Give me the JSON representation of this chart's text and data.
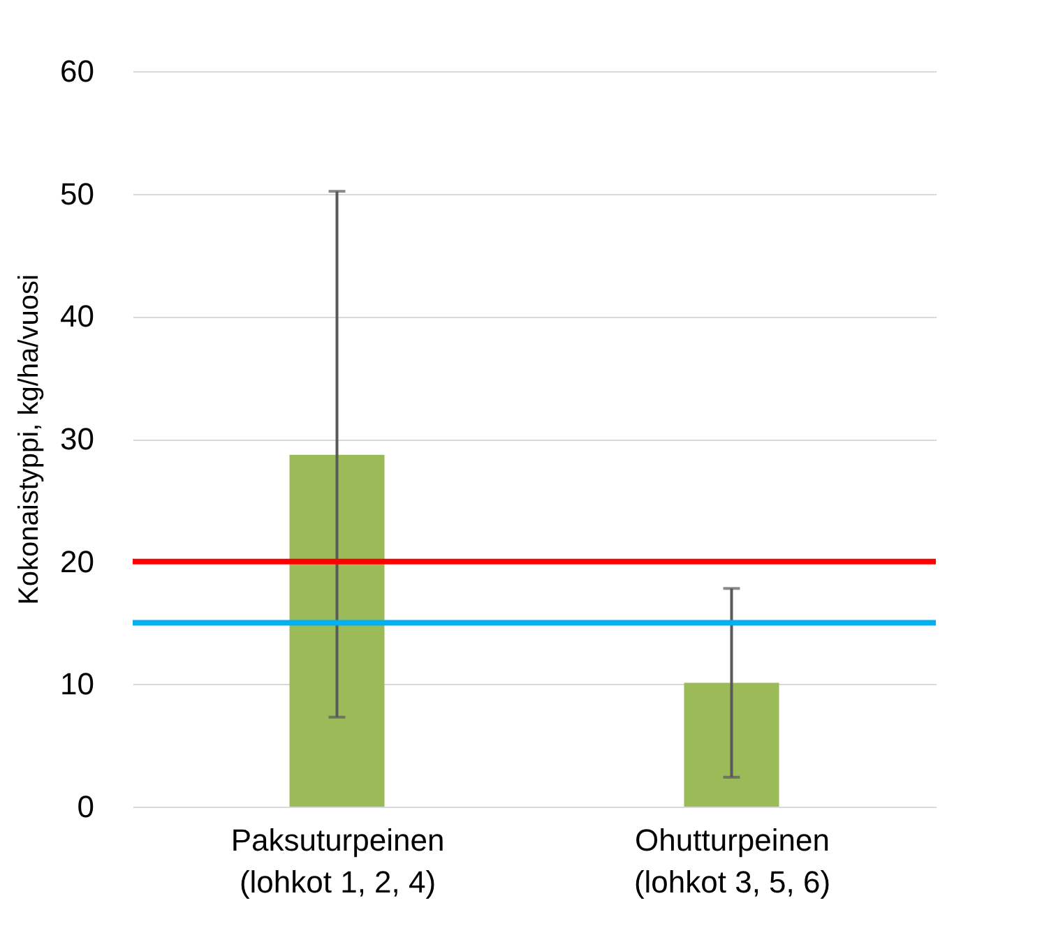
{
  "chart_data": {
    "type": "bar",
    "ylabel": "Kokonaistyppi, kg/ha/vuosi",
    "categories": [
      "Paksuturpeinen\n(lohkot 1, 2, 4)",
      "Ohutturpeinen\n(lohkot 3, 5, 6)"
    ],
    "values": [
      28.7,
      10.1
    ],
    "color": "#9bbb59",
    "errors": [
      [
        7.3,
        50.2
      ],
      [
        2.4,
        17.8
      ]
    ],
    "ylim": [
      0,
      60
    ],
    "yticks": [
      0,
      10,
      20,
      30,
      40,
      50,
      60
    ],
    "grid": "y",
    "ref_lines": [
      {
        "axis": "y",
        "value": 20,
        "color": "#ff0000",
        "line_style": "solid"
      },
      {
        "axis": "y",
        "value": 15,
        "color": "#00b0f0",
        "line_style": "solid"
      }
    ]
  }
}
